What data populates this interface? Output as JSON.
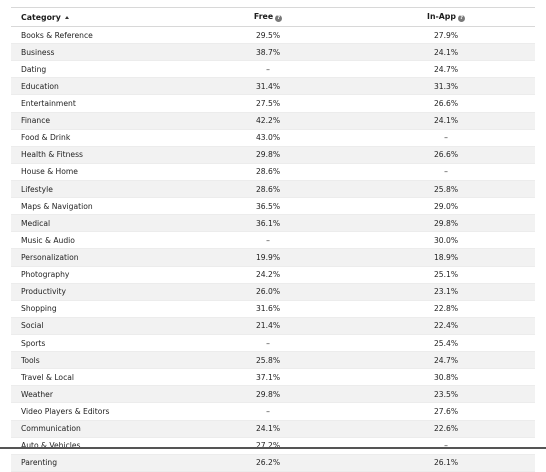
{
  "table": {
    "headers": {
      "category": "Category",
      "free": "Free",
      "inapp": "In-App",
      "sort_icon": "sort-ascending-icon",
      "help_icon": "help-icon"
    },
    "rows": [
      {
        "category": "Books & Reference",
        "free": "29.5%",
        "inapp": "27.9%"
      },
      {
        "category": "Business",
        "free": "38.7%",
        "inapp": "24.1%"
      },
      {
        "category": "Dating",
        "free": "–",
        "inapp": "24.7%"
      },
      {
        "category": "Education",
        "free": "31.4%",
        "inapp": "31.3%"
      },
      {
        "category": "Entertainment",
        "free": "27.5%",
        "inapp": "26.6%"
      },
      {
        "category": "Finance",
        "free": "42.2%",
        "inapp": "24.1%"
      },
      {
        "category": "Food & Drink",
        "free": "43.0%",
        "inapp": "–"
      },
      {
        "category": "Health & Fitness",
        "free": "29.8%",
        "inapp": "26.6%"
      },
      {
        "category": "House & Home",
        "free": "28.6%",
        "inapp": "–"
      },
      {
        "category": "Lifestyle",
        "free": "28.6%",
        "inapp": "25.8%"
      },
      {
        "category": "Maps & Navigation",
        "free": "36.5%",
        "inapp": "29.0%"
      },
      {
        "category": "Medical",
        "free": "36.1%",
        "inapp": "29.8%"
      },
      {
        "category": "Music & Audio",
        "free": "–",
        "inapp": "30.0%"
      },
      {
        "category": "Personalization",
        "free": "19.9%",
        "inapp": "18.9%"
      },
      {
        "category": "Photography",
        "free": "24.2%",
        "inapp": "25.1%"
      },
      {
        "category": "Productivity",
        "free": "26.0%",
        "inapp": "23.1%"
      },
      {
        "category": "Shopping",
        "free": "31.6%",
        "inapp": "22.8%"
      },
      {
        "category": "Social",
        "free": "21.4%",
        "inapp": "22.4%"
      },
      {
        "category": "Sports",
        "free": "–",
        "inapp": "25.4%"
      },
      {
        "category": "Tools",
        "free": "25.8%",
        "inapp": "24.7%"
      },
      {
        "category": "Travel & Local",
        "free": "37.1%",
        "inapp": "30.8%"
      },
      {
        "category": "Weather",
        "free": "29.8%",
        "inapp": "23.5%"
      },
      {
        "category": "Video Players & Editors",
        "free": "–",
        "inapp": "27.6%"
      },
      {
        "category": "Communication",
        "free": "24.1%",
        "inapp": "22.6%"
      },
      {
        "category": "Auto & Vehicles",
        "free": "27.2%",
        "inapp": "–"
      },
      {
        "category": "Parenting",
        "free": "26.2%",
        "inapp": "26.1%"
      }
    ]
  }
}
